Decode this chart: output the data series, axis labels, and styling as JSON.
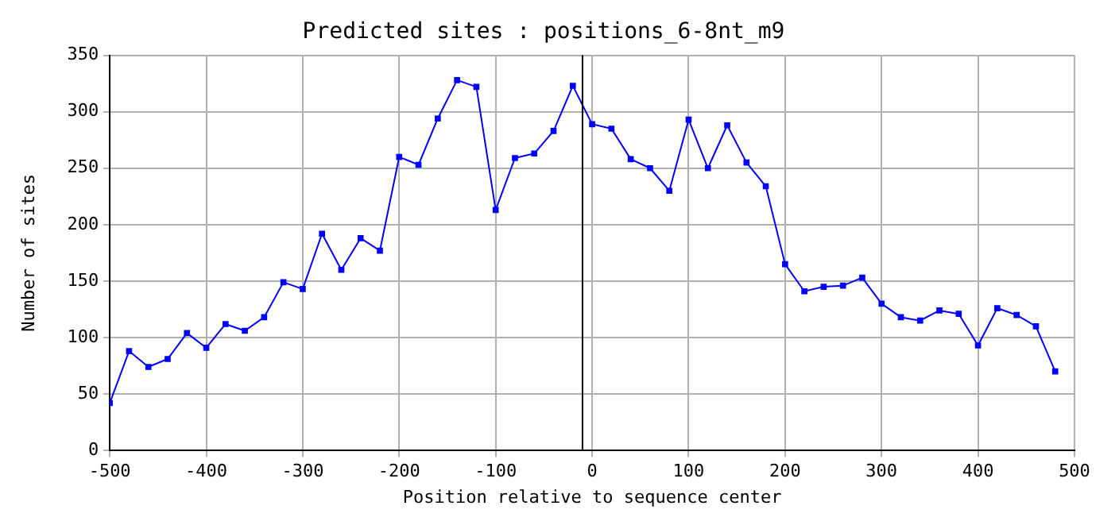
{
  "chart_data": {
    "type": "line",
    "title": "Predicted sites : positions_6-8nt_m9",
    "xlabel": "Position relative to sequence center",
    "ylabel": "Number of sites",
    "x": [
      -500,
      -480,
      -460,
      -440,
      -420,
      -400,
      -380,
      -360,
      -340,
      -320,
      -300,
      -280,
      -260,
      -240,
      -220,
      -200,
      -180,
      -160,
      -140,
      -120,
      -100,
      -80,
      -60,
      -40,
      -20,
      0,
      20,
      40,
      60,
      80,
      100,
      120,
      140,
      160,
      180,
      200,
      220,
      240,
      260,
      280,
      300,
      320,
      340,
      360,
      380,
      400,
      420,
      440,
      460,
      480
    ],
    "series": [
      {
        "color": "#0000ff",
        "values": [
          42,
          88,
          74,
          81,
          104,
          91,
          112,
          106,
          118,
          149,
          143,
          192,
          160,
          188,
          177,
          260,
          253,
          294,
          328,
          322,
          213,
          259,
          263,
          283,
          323,
          289,
          285,
          258,
          250,
          230,
          293,
          250,
          288,
          255,
          234,
          165,
          141,
          145,
          146,
          153,
          130,
          118,
          115,
          124,
          121,
          93,
          126,
          120,
          110,
          70
        ]
      }
    ],
    "xlim": [
      -500,
      500
    ],
    "xticks": [
      -500,
      -400,
      -300,
      -200,
      -100,
      0,
      100,
      200,
      300,
      400,
      500
    ],
    "ylim": [
      0,
      350
    ],
    "yticks": [
      0,
      50,
      100,
      150,
      200,
      250,
      300,
      350
    ],
    "grid": true,
    "marker": "square",
    "line_style": "solid",
    "legend": false,
    "ref_lines": [
      {
        "axis": "x",
        "value": -10,
        "color": "#000000"
      }
    ]
  }
}
